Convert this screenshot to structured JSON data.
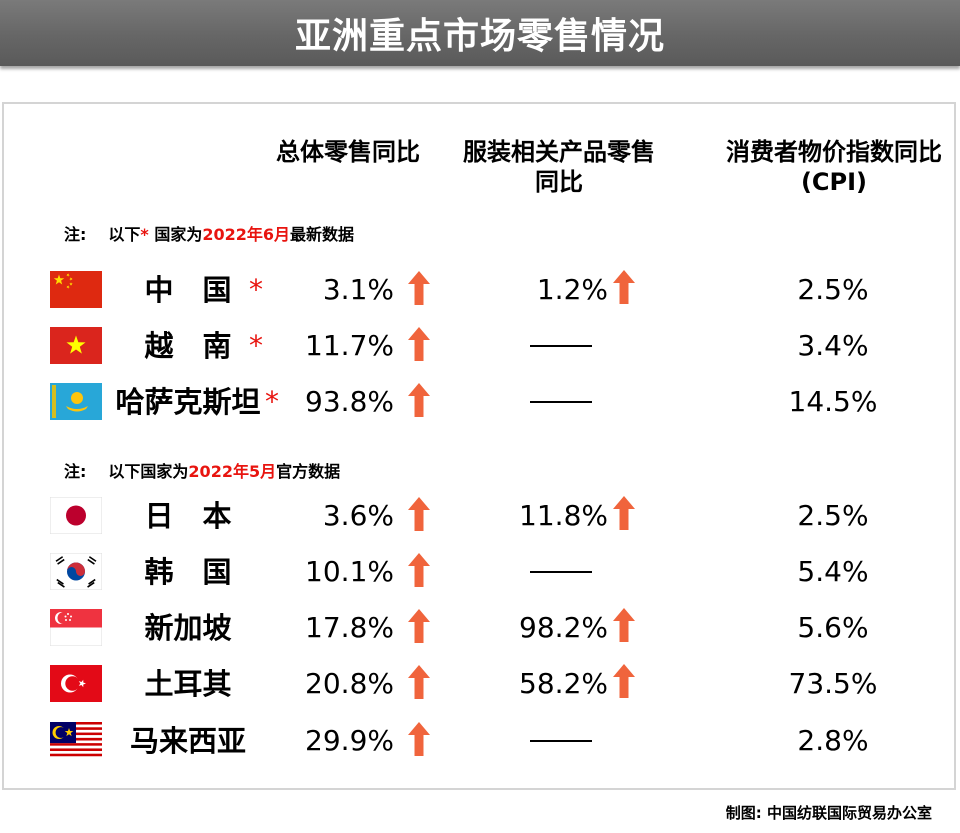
{
  "title": "亚洲重点市场零售情况",
  "columns": {
    "retail": "总体零售同比",
    "apparel_line1": "服装相关产品零售",
    "apparel_line2": "同比",
    "cpi_line1": "消费者物价指数同比",
    "cpi_line2": "(CPI)"
  },
  "notes": {
    "june": {
      "label": "注:",
      "pre": "以下",
      "star": "*",
      "mid": " 国家为",
      "date": "2022年6月",
      "post": "最新数据"
    },
    "may": {
      "label": "注:",
      "pre": "以下国家为",
      "date": "2022年5月",
      "post": "官方数据"
    }
  },
  "dash_symbol": "——",
  "star_symbol": "*",
  "footer": "制图: 中国纺联国际贸易办公室",
  "colors": {
    "arrow": "#f0643c",
    "red": "#e8140f",
    "title_bg": "#666666"
  },
  "chart_data": {
    "type": "table",
    "title": "亚洲重点市场零售情况",
    "columns": [
      "总体零售同比",
      "服装相关产品零售同比",
      "消费者物价指数同比(CPI)"
    ],
    "rows": [
      {
        "country": "中　国",
        "starred": true,
        "flag": "china-flag",
        "retail": "3.1%",
        "retail_up": true,
        "apparel": "1.2%",
        "apparel_up": true,
        "cpi": "2.5%"
      },
      {
        "country": "越　南",
        "starred": true,
        "flag": "vietnam-flag",
        "retail": "11.7%",
        "retail_up": true,
        "apparel": null,
        "apparel_up": false,
        "cpi": "3.4%"
      },
      {
        "country": "哈萨克斯坦",
        "starred": true,
        "flag": "kazakhstan-flag",
        "retail": "93.8%",
        "retail_up": true,
        "apparel": null,
        "apparel_up": false,
        "cpi": "14.5%"
      },
      {
        "country": "日　本",
        "starred": false,
        "flag": "japan-flag",
        "retail": "3.6%",
        "retail_up": true,
        "apparel": "11.8%",
        "apparel_up": true,
        "cpi": "2.5%"
      },
      {
        "country": "韩　国",
        "starred": false,
        "flag": "korea-flag",
        "retail": "10.1%",
        "retail_up": true,
        "apparel": null,
        "apparel_up": false,
        "cpi": "5.4%"
      },
      {
        "country": "新加坡",
        "starred": false,
        "flag": "singapore-flag",
        "retail": "17.8%",
        "retail_up": true,
        "apparel": "98.2%",
        "apparel_up": true,
        "cpi": "5.6%"
      },
      {
        "country": "土耳其",
        "starred": false,
        "flag": "turkey-flag",
        "retail": "20.8%",
        "retail_up": true,
        "apparel": "58.2%",
        "apparel_up": true,
        "cpi": "73.5%"
      },
      {
        "country": "马来西亚",
        "starred": false,
        "flag": "malaysia-flag",
        "retail": "29.9%",
        "retail_up": true,
        "apparel": null,
        "apparel_up": false,
        "cpi": "2.8%"
      }
    ]
  }
}
